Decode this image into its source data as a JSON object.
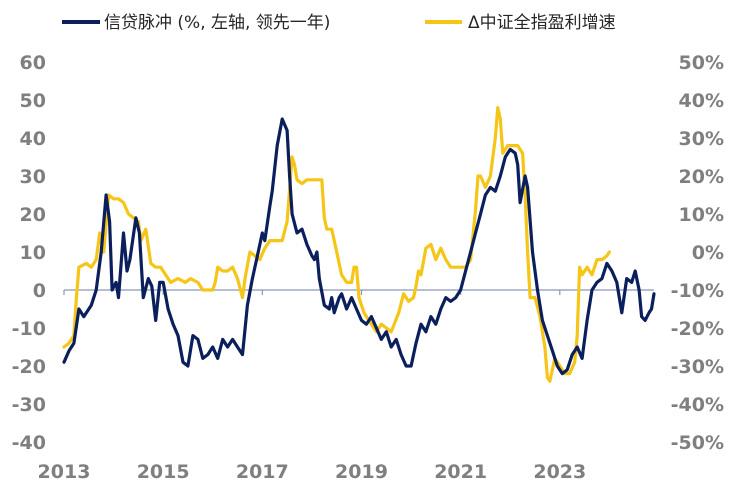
{
  "chart_data": {
    "type": "line",
    "title": "",
    "xlabel": "",
    "ylabel": "",
    "x_ticks": [
      "2013",
      "2015",
      "2017",
      "2019",
      "2021",
      "2023"
    ],
    "x_range": [
      2013.0,
      2024.9
    ],
    "left_axis": {
      "ylim": [
        -40,
        60
      ],
      "ticks": [
        -40,
        -30,
        -20,
        -10,
        0,
        10,
        20,
        30,
        40,
        50,
        60
      ],
      "tick_labels": [
        "-40",
        "-30",
        "-20",
        "-10",
        "0",
        "10",
        "20",
        "30",
        "40",
        "50",
        "60"
      ]
    },
    "right_axis": {
      "ylim": [
        -50,
        50
      ],
      "ticks": [
        -50,
        -40,
        -30,
        -20,
        -10,
        0,
        10,
        20,
        30,
        40,
        50
      ],
      "tick_labels": [
        "-50%",
        "-40%",
        "-30%",
        "-20%",
        "-10%",
        "0%",
        "10%",
        "20%",
        "30%",
        "40%",
        "50%"
      ]
    },
    "grid": false,
    "legend_position": "top",
    "series": [
      {
        "name": "信贷脉冲 (%, 左轴, 领先一年)",
        "axis": "left",
        "color": "#0b1f5c",
        "points": [
          [
            2013.0,
            -19
          ],
          [
            2013.1,
            -16
          ],
          [
            2013.2,
            -14
          ],
          [
            2013.3,
            -5
          ],
          [
            2013.4,
            -7
          ],
          [
            2013.55,
            -4
          ],
          [
            2013.65,
            0
          ],
          [
            2013.75,
            10
          ],
          [
            2013.85,
            25
          ],
          [
            2013.92,
            18
          ],
          [
            2013.97,
            0
          ],
          [
            2014.05,
            2
          ],
          [
            2014.1,
            -2
          ],
          [
            2014.2,
            15
          ],
          [
            2014.27,
            5
          ],
          [
            2014.33,
            8
          ],
          [
            2014.45,
            19
          ],
          [
            2014.52,
            15
          ],
          [
            2014.6,
            -2
          ],
          [
            2014.7,
            3
          ],
          [
            2014.77,
            1
          ],
          [
            2014.85,
            -8
          ],
          [
            2014.93,
            2
          ],
          [
            2015.0,
            2
          ],
          [
            2015.1,
            -5
          ],
          [
            2015.2,
            -9
          ],
          [
            2015.3,
            -12
          ],
          [
            2015.4,
            -19
          ],
          [
            2015.5,
            -20
          ],
          [
            2015.6,
            -12
          ],
          [
            2015.7,
            -13
          ],
          [
            2015.8,
            -18
          ],
          [
            2015.9,
            -17
          ],
          [
            2016.0,
            -15
          ],
          [
            2016.1,
            -18
          ],
          [
            2016.2,
            -13
          ],
          [
            2016.3,
            -15
          ],
          [
            2016.4,
            -13
          ],
          [
            2016.5,
            -15
          ],
          [
            2016.6,
            -17
          ],
          [
            2016.7,
            -4
          ],
          [
            2016.8,
            3
          ],
          [
            2016.9,
            9
          ],
          [
            2017.0,
            15
          ],
          [
            2017.05,
            13
          ],
          [
            2017.15,
            22
          ],
          [
            2017.2,
            26
          ],
          [
            2017.3,
            38
          ],
          [
            2017.4,
            45
          ],
          [
            2017.5,
            42
          ],
          [
            2017.55,
            30
          ],
          [
            2017.6,
            20
          ],
          [
            2017.7,
            15
          ],
          [
            2017.8,
            16
          ],
          [
            2017.9,
            12
          ],
          [
            2018.0,
            9
          ],
          [
            2018.05,
            8
          ],
          [
            2018.1,
            10
          ],
          [
            2018.15,
            3
          ],
          [
            2018.25,
            -4
          ],
          [
            2018.35,
            -5
          ],
          [
            2018.4,
            -2
          ],
          [
            2018.45,
            -6
          ],
          [
            2018.55,
            -2
          ],
          [
            2018.6,
            -1
          ],
          [
            2018.7,
            -5
          ],
          [
            2018.8,
            -2
          ],
          [
            2018.9,
            -5
          ],
          [
            2019.0,
            -8
          ],
          [
            2019.1,
            -9
          ],
          [
            2019.2,
            -7
          ],
          [
            2019.3,
            -10
          ],
          [
            2019.4,
            -13
          ],
          [
            2019.5,
            -11
          ],
          [
            2019.6,
            -15
          ],
          [
            2019.7,
            -13
          ],
          [
            2019.8,
            -17
          ],
          [
            2019.9,
            -20
          ],
          [
            2020.0,
            -20
          ],
          [
            2020.1,
            -14
          ],
          [
            2020.2,
            -9
          ],
          [
            2020.3,
            -11
          ],
          [
            2020.4,
            -7
          ],
          [
            2020.5,
            -9
          ],
          [
            2020.6,
            -5
          ],
          [
            2020.7,
            -2
          ],
          [
            2020.8,
            -3
          ],
          [
            2020.9,
            -2
          ],
          [
            2021.0,
            0
          ],
          [
            2021.1,
            5
          ],
          [
            2021.2,
            10
          ],
          [
            2021.3,
            15
          ],
          [
            2021.4,
            20
          ],
          [
            2021.5,
            25
          ],
          [
            2021.6,
            27
          ],
          [
            2021.7,
            26
          ],
          [
            2021.8,
            30
          ],
          [
            2021.9,
            35
          ],
          [
            2022.0,
            37
          ],
          [
            2022.1,
            36
          ],
          [
            2022.15,
            33
          ],
          [
            2022.2,
            23
          ],
          [
            2022.3,
            30
          ],
          [
            2022.35,
            27
          ],
          [
            2022.45,
            10
          ],
          [
            2022.55,
            0
          ],
          [
            2022.65,
            -8
          ],
          [
            2022.75,
            -12
          ],
          [
            2022.85,
            -16
          ],
          [
            2022.95,
            -20
          ],
          [
            2023.05,
            -22
          ],
          [
            2023.15,
            -21
          ],
          [
            2023.25,
            -17
          ],
          [
            2023.35,
            -15
          ],
          [
            2023.45,
            -18
          ],
          [
            2023.55,
            -8
          ],
          [
            2023.65,
            0
          ],
          [
            2023.75,
            2
          ],
          [
            2023.85,
            3
          ],
          [
            2023.95,
            7
          ],
          [
            2024.05,
            5
          ],
          [
            2024.15,
            2
          ],
          [
            2024.25,
            -6
          ],
          [
            2024.35,
            3
          ],
          [
            2024.45,
            2
          ],
          [
            2024.52,
            5
          ],
          [
            2024.6,
            0
          ],
          [
            2024.65,
            -7
          ],
          [
            2024.72,
            -8
          ],
          [
            2024.8,
            -6
          ],
          [
            2024.85,
            -5
          ],
          [
            2024.9,
            -1
          ]
        ]
      },
      {
        "name": "Δ中证全指盈利增速",
        "axis": "right",
        "color": "#f5c518",
        "points": [
          [
            2013.0,
            -25
          ],
          [
            2013.1,
            -24
          ],
          [
            2013.2,
            -22
          ],
          [
            2013.25,
            -12
          ],
          [
            2013.3,
            -4
          ],
          [
            2013.45,
            -3
          ],
          [
            2013.55,
            -4
          ],
          [
            2013.65,
            -2
          ],
          [
            2013.72,
            5
          ],
          [
            2013.8,
            0
          ],
          [
            2013.9,
            15
          ],
          [
            2014.0,
            14
          ],
          [
            2014.1,
            14
          ],
          [
            2014.2,
            13
          ],
          [
            2014.3,
            10
          ],
          [
            2014.4,
            9
          ],
          [
            2014.5,
            8
          ],
          [
            2014.55,
            3
          ],
          [
            2014.65,
            6
          ],
          [
            2014.75,
            -3
          ],
          [
            2014.85,
            -4
          ],
          [
            2014.95,
            -4
          ],
          [
            2015.05,
            -6
          ],
          [
            2015.15,
            -8
          ],
          [
            2015.3,
            -7
          ],
          [
            2015.45,
            -8
          ],
          [
            2015.55,
            -7
          ],
          [
            2015.7,
            -8
          ],
          [
            2015.8,
            -10
          ],
          [
            2015.9,
            -10
          ],
          [
            2016.0,
            -10
          ],
          [
            2016.05,
            -8
          ],
          [
            2016.1,
            -4
          ],
          [
            2016.2,
            -5
          ],
          [
            2016.3,
            -5
          ],
          [
            2016.4,
            -4
          ],
          [
            2016.5,
            -7
          ],
          [
            2016.6,
            -12
          ],
          [
            2016.65,
            -7
          ],
          [
            2016.75,
            0
          ],
          [
            2016.85,
            -1
          ],
          [
            2016.95,
            -2
          ],
          [
            2017.05,
            1
          ],
          [
            2017.15,
            3
          ],
          [
            2017.3,
            3
          ],
          [
            2017.4,
            3
          ],
          [
            2017.5,
            8
          ],
          [
            2017.6,
            25
          ],
          [
            2017.65,
            23
          ],
          [
            2017.7,
            19
          ],
          [
            2017.8,
            18
          ],
          [
            2017.9,
            19
          ],
          [
            2018.1,
            19
          ],
          [
            2018.2,
            19
          ],
          [
            2018.25,
            9
          ],
          [
            2018.3,
            6
          ],
          [
            2018.4,
            6
          ],
          [
            2018.5,
            0
          ],
          [
            2018.6,
            -6
          ],
          [
            2018.7,
            -8
          ],
          [
            2018.8,
            -8
          ],
          [
            2018.85,
            -4
          ],
          [
            2018.9,
            -4
          ],
          [
            2018.95,
            -12
          ],
          [
            2019.05,
            -16
          ],
          [
            2019.15,
            -18
          ],
          [
            2019.3,
            -21
          ],
          [
            2019.4,
            -19
          ],
          [
            2019.5,
            -20
          ],
          [
            2019.6,
            -21
          ],
          [
            2019.75,
            -16
          ],
          [
            2019.85,
            -11
          ],
          [
            2019.95,
            -13
          ],
          [
            2020.05,
            -12
          ],
          [
            2020.1,
            -9
          ],
          [
            2020.15,
            -5
          ],
          [
            2020.2,
            -6
          ],
          [
            2020.3,
            1
          ],
          [
            2020.4,
            2
          ],
          [
            2020.5,
            -2
          ],
          [
            2020.6,
            1
          ],
          [
            2020.7,
            -2
          ],
          [
            2020.8,
            -4
          ],
          [
            2020.9,
            -4
          ],
          [
            2021.0,
            -4
          ],
          [
            2021.1,
            -4
          ],
          [
            2021.2,
            -2
          ],
          [
            2021.3,
            11
          ],
          [
            2021.35,
            20
          ],
          [
            2021.4,
            20
          ],
          [
            2021.5,
            17
          ],
          [
            2021.6,
            20
          ],
          [
            2021.7,
            30
          ],
          [
            2021.75,
            38
          ],
          [
            2021.8,
            35
          ],
          [
            2021.85,
            26
          ],
          [
            2021.95,
            28
          ],
          [
            2022.05,
            28
          ],
          [
            2022.15,
            28
          ],
          [
            2022.25,
            26
          ],
          [
            2022.3,
            15
          ],
          [
            2022.35,
            0
          ],
          [
            2022.4,
            -12
          ],
          [
            2022.5,
            -12
          ],
          [
            2022.6,
            -17
          ],
          [
            2022.7,
            -25
          ],
          [
            2022.75,
            -33
          ],
          [
            2022.8,
            -34
          ],
          [
            2022.9,
            -28
          ],
          [
            2023.0,
            -30
          ],
          [
            2023.1,
            -32
          ],
          [
            2023.2,
            -32
          ],
          [
            2023.3,
            -29
          ],
          [
            2023.35,
            -22
          ],
          [
            2023.4,
            -4
          ],
          [
            2023.45,
            -6
          ],
          [
            2023.55,
            -4
          ],
          [
            2023.65,
            -6
          ],
          [
            2023.75,
            -2
          ],
          [
            2023.85,
            -2
          ],
          [
            2023.95,
            -1
          ],
          [
            2024.0,
            0
          ]
        ]
      }
    ]
  }
}
